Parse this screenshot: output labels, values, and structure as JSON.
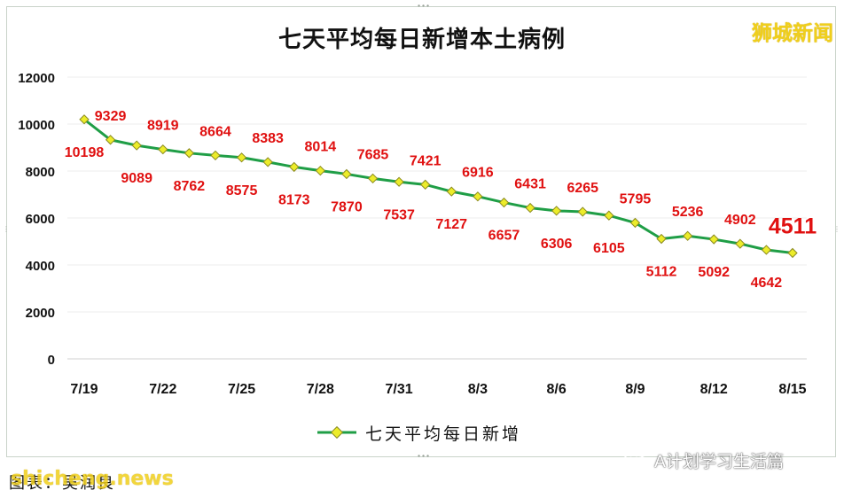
{
  "chart_data": {
    "type": "line",
    "title": "七天平均每日新增本土病例",
    "xlabel": "",
    "ylabel": "",
    "ylim": [
      0,
      12000
    ],
    "yticks": [
      0,
      2000,
      4000,
      6000,
      8000,
      10000,
      12000
    ],
    "x": [
      "7/19",
      "7/20",
      "7/21",
      "7/22",
      "7/23",
      "7/24",
      "7/25",
      "7/26",
      "7/27",
      "7/28",
      "7/29",
      "7/30",
      "7/31",
      "8/1",
      "8/2",
      "8/3",
      "8/4",
      "8/5",
      "8/6",
      "8/7",
      "8/8",
      "8/9",
      "8/10",
      "8/11",
      "8/12",
      "8/13",
      "8/14",
      "8/15"
    ],
    "xtick_labels": [
      "7/19",
      "7/22",
      "7/25",
      "7/28",
      "7/31",
      "8/3",
      "8/6",
      "8/9",
      "8/12",
      "8/15"
    ],
    "grid": true,
    "legend_position": "bottom",
    "series": [
      {
        "name": "七天平均每日新增",
        "color": "#1f9e46",
        "marker_color": "#ecec2a",
        "label_color": "#e01010",
        "values": [
          10198,
          9329,
          9089,
          8919,
          8762,
          8664,
          8575,
          8383,
          8173,
          8014,
          7870,
          7685,
          7537,
          7421,
          7127,
          6916,
          6657,
          6431,
          6306,
          6265,
          6105,
          5795,
          5112,
          5236,
          5092,
          4902,
          4642,
          4511
        ],
        "labels": [
          "10198",
          "9329",
          "9089",
          "8919",
          "8762",
          "8664",
          "8575",
          "8383",
          "8173",
          "8014",
          "7870",
          "7685",
          "7537",
          "7421",
          "7127",
          "6916",
          "6657",
          "6431",
          "6306",
          "6265",
          "6105",
          "5795",
          "5112",
          "5236",
          "5092",
          "4902",
          "4642",
          "4511"
        ]
      }
    ]
  },
  "branding": {
    "top_right": "狮城新闻",
    "bottom_left": "shicheng.news",
    "wechat": "A计划学习生活篇"
  },
  "source_note": "图表：吴润良"
}
